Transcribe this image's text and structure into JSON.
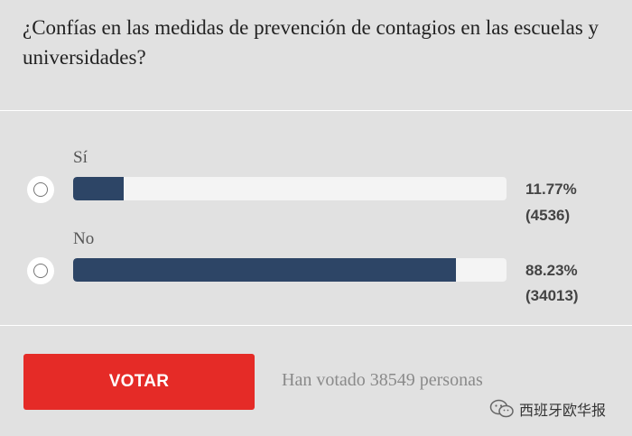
{
  "poll": {
    "question": "¿Confías en las medidas de prevención de contagios en las escuelas y universidades?",
    "options": [
      {
        "label": "Sí",
        "percent_label": "11.77%",
        "count_label": "(4536)",
        "fraction": 0.1177
      },
      {
        "label": "No",
        "percent_label": "88.23%",
        "count_label": "(34013)",
        "fraction": 0.8823
      }
    ],
    "vote_button": "VOTAR",
    "total_votes": "Han votado 38549 personas"
  },
  "watermark": {
    "text": "西班牙欧华报",
    "icon": "wechat-icon"
  },
  "colors": {
    "background": "#e1e1e1",
    "bar_fill": "#2d4566",
    "bar_track": "#f4f4f4",
    "button": "#e52b27"
  }
}
